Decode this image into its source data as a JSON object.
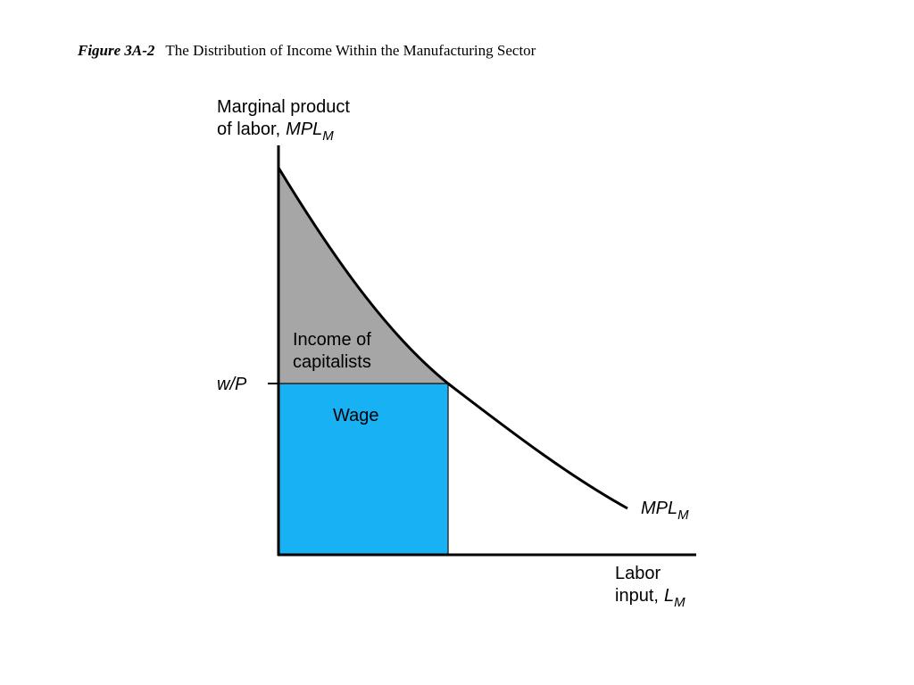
{
  "figure": {
    "number": "Figure 3A-2",
    "caption": "The Distribution of Income Within the Manufacturing Sector"
  },
  "y_axis_label": {
    "line1": "Marginal product",
    "line2": "of labor,",
    "symbol": "MPL",
    "subscript": "M"
  },
  "x_axis_label": {
    "line1": "Labor",
    "line2": "input,",
    "symbol": "L",
    "subscript": "M"
  },
  "curve_label": {
    "symbol": "MPL",
    "subscript": "M"
  },
  "wage_level_label": "w/P",
  "areas": {
    "capitalists": {
      "line1": "Income of",
      "line2": "capitalists"
    },
    "wage": "Wage"
  }
}
